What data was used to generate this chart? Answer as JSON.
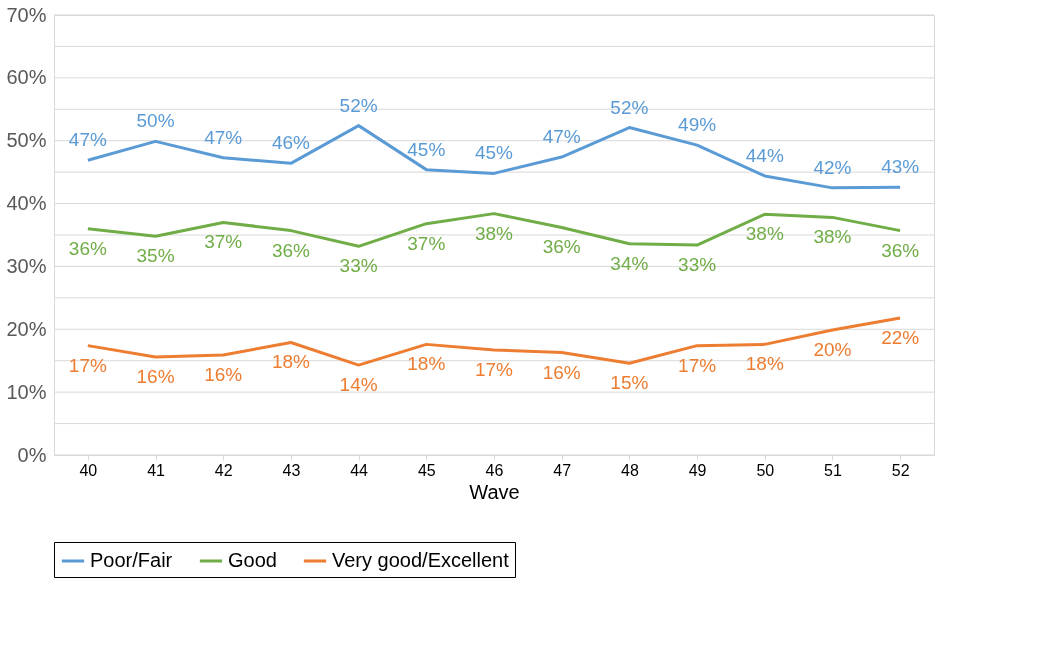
{
  "chart_data": {
    "type": "line",
    "xlabel": "Wave",
    "categories": [
      "40",
      "41",
      "42",
      "43",
      "44",
      "45",
      "46",
      "47",
      "48",
      "49",
      "50",
      "51",
      "52"
    ],
    "series": [
      {
        "name": "Poor/Fair",
        "color": "#5b9bd5",
        "values": [
          46.9,
          49.9,
          47.3,
          46.4,
          52.4,
          45.4,
          44.8,
          47.4,
          52.1,
          49.3,
          44.4,
          42.5,
          42.6
        ],
        "value_labels": [
          "47%",
          "50%",
          "47%",
          "46%",
          "52%",
          "45%",
          "45%",
          "47%",
          "52%",
          "49%",
          "44%",
          "42%",
          "43%"
        ]
      },
      {
        "name": "Good",
        "color": "#70ad47",
        "values": [
          36.0,
          34.8,
          37.0,
          35.7,
          33.2,
          36.8,
          38.4,
          36.2,
          33.6,
          33.4,
          38.3,
          37.8,
          35.7
        ],
        "value_labels": [
          "36%",
          "35%",
          "37%",
          "36%",
          "33%",
          "37%",
          "38%",
          "36%",
          "34%",
          "33%",
          "38%",
          "38%",
          "36%"
        ]
      },
      {
        "name": "Very good/Excellent",
        "color": "#ed7d31",
        "values": [
          17.4,
          15.6,
          15.9,
          17.9,
          14.3,
          17.6,
          16.7,
          16.3,
          14.6,
          17.4,
          17.6,
          19.9,
          21.8
        ],
        "value_labels": [
          "17%",
          "16%",
          "16%",
          "18%",
          "14%",
          "18%",
          "17%",
          "16%",
          "15%",
          "17%",
          "18%",
          "20%",
          "22%"
        ]
      }
    ],
    "ylim": [
      0,
      70
    ],
    "yticks": [
      {
        "value": 0,
        "label": "0%"
      },
      {
        "value": 5,
        "label": null
      },
      {
        "value": 10,
        "label": "10%"
      },
      {
        "value": 15,
        "label": null
      },
      {
        "value": 20,
        "label": "20%"
      },
      {
        "value": 25,
        "label": null
      },
      {
        "value": 30,
        "label": "30%"
      },
      {
        "value": 35,
        "label": null
      },
      {
        "value": 40,
        "label": "40%"
      },
      {
        "value": 45,
        "label": null
      },
      {
        "value": 50,
        "label": "50%"
      },
      {
        "value": 55,
        "label": null
      },
      {
        "value": 60,
        "label": "60%"
      },
      {
        "value": 65,
        "label": null
      },
      {
        "value": 70,
        "label": "70%"
      }
    ],
    "grid": "y",
    "legend": "bottom",
    "marker": "none",
    "line_style": "solid"
  }
}
